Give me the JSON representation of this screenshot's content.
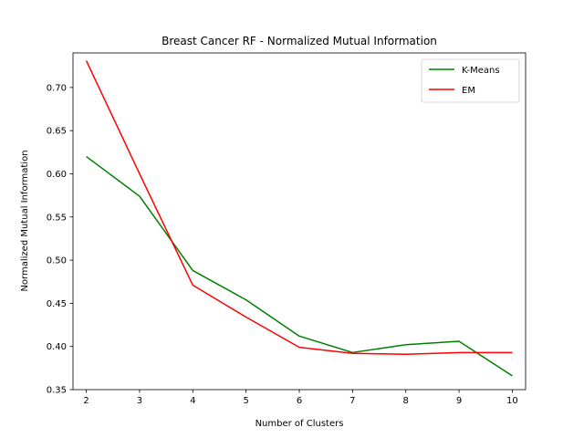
{
  "chart_data": {
    "type": "line",
    "title": "Breast Cancer RF - Normalized Mutual Information",
    "xlabel": "Number of Clusters",
    "ylabel": "Normalized Mutual Information",
    "x": [
      2,
      3,
      4,
      5,
      6,
      7,
      8,
      9,
      10
    ],
    "xlim": [
      1.75,
      10.25
    ],
    "ylim": [
      0.35,
      0.74
    ],
    "xticks": [
      2,
      3,
      4,
      5,
      6,
      7,
      8,
      9,
      10
    ],
    "yticks": [
      0.35,
      0.4,
      0.45,
      0.5,
      0.55,
      0.6,
      0.65,
      0.7
    ],
    "ytick_labels": [
      "0.35",
      "0.40",
      "0.45",
      "0.50",
      "0.55",
      "0.60",
      "0.65",
      "0.70"
    ],
    "grid": false,
    "legend_position": "upper right",
    "series": [
      {
        "name": "K-Means",
        "color": "#008000",
        "values": [
          0.62,
          0.574,
          0.488,
          0.454,
          0.412,
          0.393,
          0.402,
          0.406,
          0.366
        ]
      },
      {
        "name": "EM",
        "color": "#ff0000",
        "values": [
          0.731,
          0.6,
          0.471,
          0.434,
          0.399,
          0.392,
          0.391,
          0.393,
          0.393
        ]
      }
    ]
  }
}
